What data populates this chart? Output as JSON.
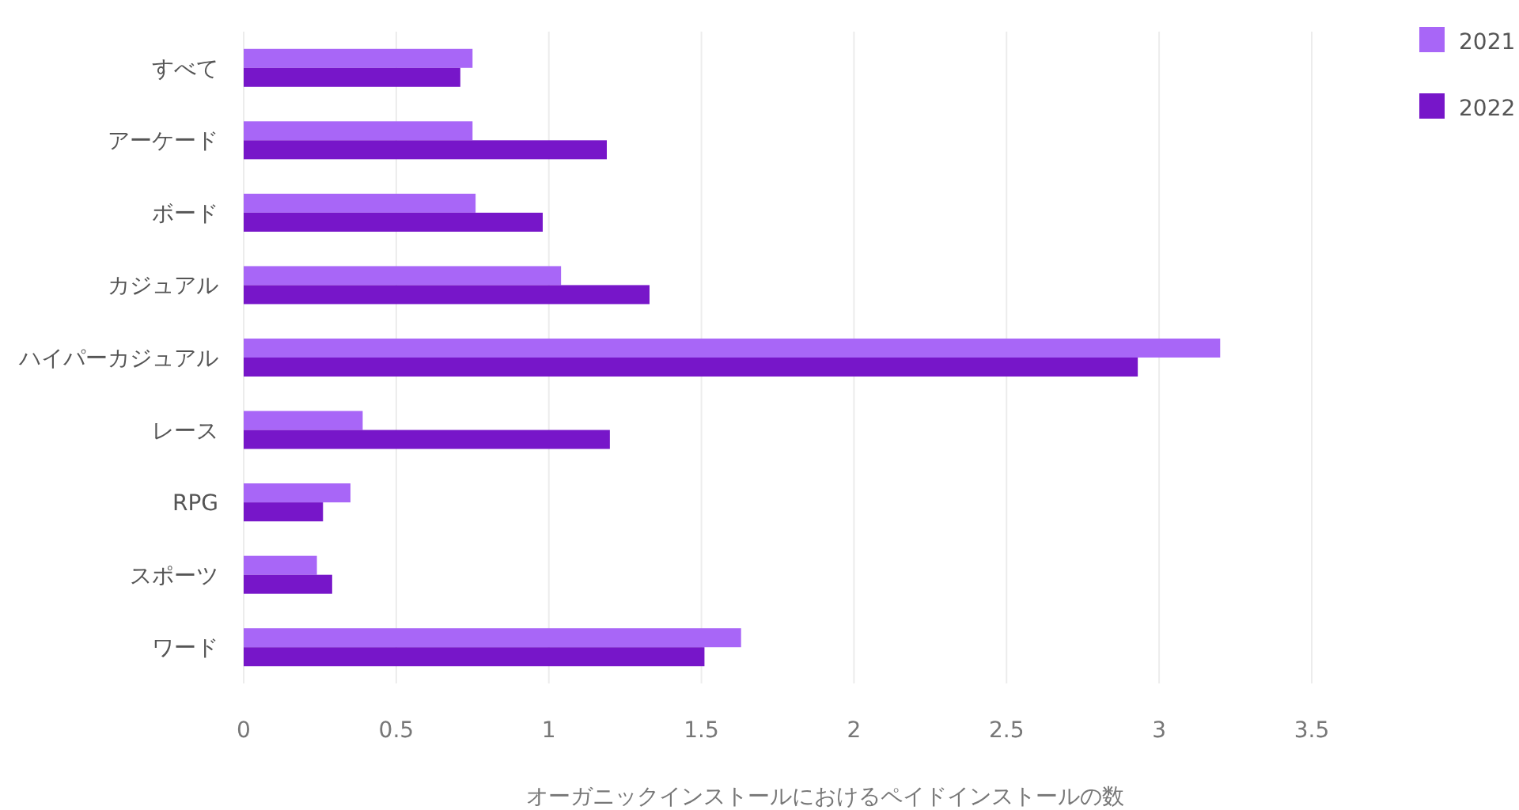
{
  "chart_data": {
    "type": "bar",
    "orientation": "horizontal",
    "xlabel": "オーガニックインストールにおけるペイドインストールの数",
    "categories": [
      "すべて",
      "アーケード",
      "ボード",
      "カジュアル",
      "ハイパーカジュアル",
      "レース",
      "RPG",
      "スポーツ",
      "ワード"
    ],
    "series": [
      {
        "name": "2021",
        "color": "#a866f7",
        "values": [
          0.75,
          0.75,
          0.76,
          1.04,
          3.2,
          0.39,
          0.35,
          0.24,
          1.63
        ]
      },
      {
        "name": "2022",
        "color": "#7716c9",
        "values": [
          0.71,
          1.19,
          0.98,
          1.33,
          2.93,
          1.2,
          0.26,
          0.29,
          1.51
        ]
      }
    ],
    "xlim": [
      0,
      3.5
    ],
    "xticks": [
      0,
      0.5,
      1,
      1.5,
      2,
      2.5,
      3,
      3.5
    ],
    "grid": "x",
    "legend": "top right"
  }
}
